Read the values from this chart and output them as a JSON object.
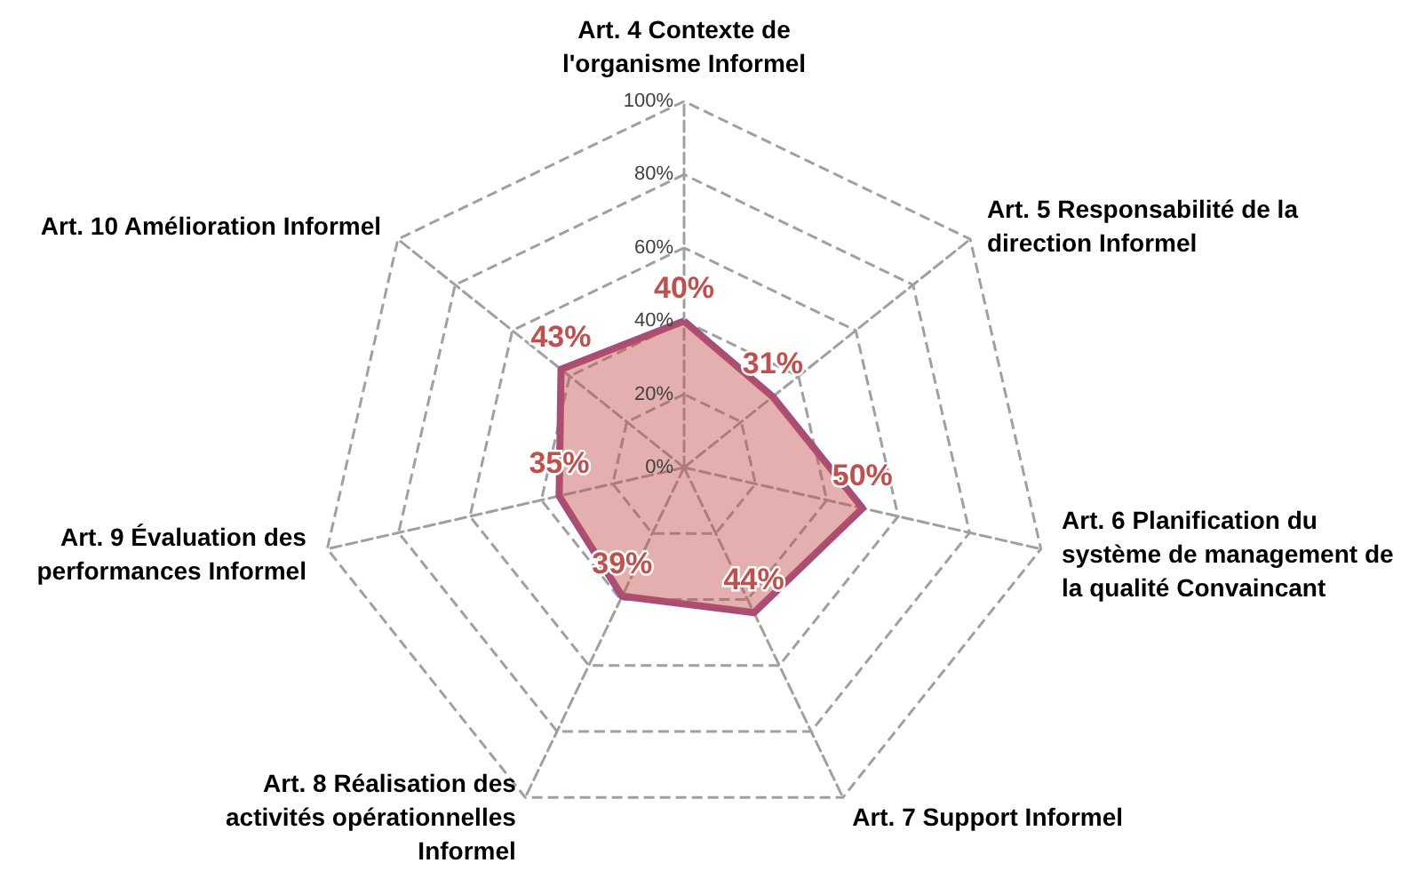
{
  "chart_data": {
    "type": "radar",
    "categories": [
      "Art. 4 Contexte de\nl'organisme Informel",
      "Art. 5 Responsabilité de la\ndirection Informel",
      "Art. 6 Planification du\nsystème de management de\nla qualité Convaincant",
      "Art. 7 Support Informel",
      "Art. 8 Réalisation des\nactivités opérationnelles\nInformel",
      "Art. 9 Évaluation des\nperformances Informel",
      "Art. 10 Amélioration Informel"
    ],
    "series": [
      {
        "color": "#a64d7c",
        "values": [
          40,
          31,
          50,
          44,
          39,
          35,
          43
        ],
        "value_labels": [
          "40%",
          "31%",
          "50%",
          "44%",
          "39%",
          "35%",
          "43%"
        ]
      }
    ],
    "ylim": [
      0,
      100
    ],
    "yticks": [
      {
        "value": 0,
        "label": "0%"
      },
      {
        "value": 20,
        "label": "20%"
      },
      {
        "value": 40,
        "label": "40%"
      },
      {
        "value": 60,
        "label": "60%"
      },
      {
        "value": 80,
        "label": "80%"
      },
      {
        "value": 100,
        "label": "100%"
      }
    ],
    "grid": true,
    "marker": "none"
  }
}
